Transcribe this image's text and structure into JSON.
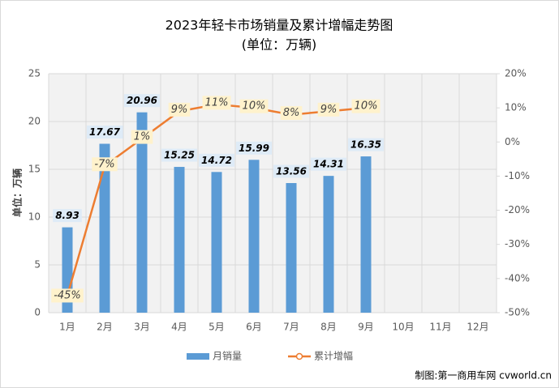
{
  "chart_data": {
    "type": "bar",
    "title": "2023年轻卡市场销量及累计增幅走势图",
    "subtitle": "(单位：万辆)",
    "y_label": "单位：万辆",
    "source": "制图:第一商用车网 cvworld.cn",
    "categories": [
      "1月",
      "2月",
      "3月",
      "4月",
      "5月",
      "6月",
      "7月",
      "8月",
      "9月",
      "10月",
      "11月",
      "12月"
    ],
    "series": [
      {
        "name": "月销量",
        "type": "bar",
        "color": "#5b9bd5",
        "values": [
          8.93,
          17.67,
          20.96,
          15.25,
          14.72,
          15.99,
          13.56,
          14.31,
          16.35,
          null,
          null,
          null
        ]
      },
      {
        "name": "累计增幅",
        "type": "line",
        "axis": "y2",
        "color": "#ed7d31",
        "values": [
          -45,
          -7,
          1,
          9,
          11,
          10,
          8,
          9,
          10,
          null,
          null,
          null
        ],
        "value_labels": [
          "-45%",
          "-7%",
          "1%",
          "9%",
          "11%",
          "10%",
          "8%",
          "9%",
          "10%",
          null,
          null,
          null
        ]
      }
    ],
    "ylim": [
      0,
      25
    ],
    "yticks": [
      0,
      5,
      10,
      15,
      20,
      25
    ],
    "y2lim": [
      -50,
      20
    ],
    "y2ticks": [
      {
        "value": -50,
        "label": "-50%"
      },
      {
        "value": -40,
        "label": "-40%"
      },
      {
        "value": -30,
        "label": "-30%"
      },
      {
        "value": -20,
        "label": "-20%"
      },
      {
        "value": -10,
        "label": "-10%"
      },
      {
        "value": 0,
        "label": "0%"
      },
      {
        "value": 10,
        "label": "10%"
      },
      {
        "value": 20,
        "label": "20%"
      }
    ],
    "grid": true
  }
}
